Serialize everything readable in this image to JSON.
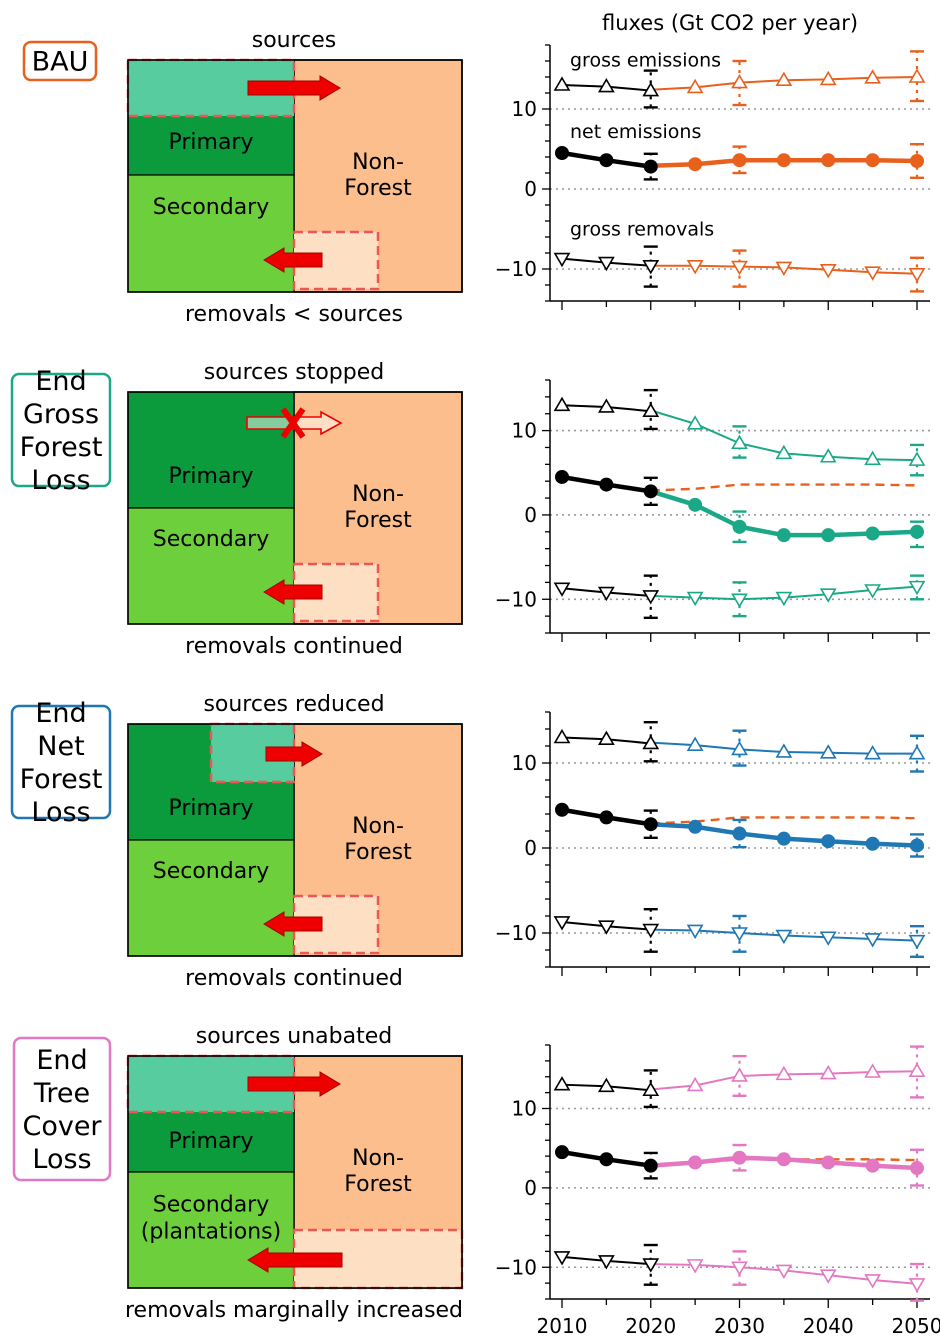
{
  "figure_title": "fluxes (Gt CO2 per year)",
  "colors": {
    "bau": "#e8601c",
    "end_gross": "#1aa887",
    "end_net": "#1f77b4",
    "end_tree": "#e377c2",
    "history": "#000000",
    "primary": "#0b9a3c",
    "secondary": "#6ecf3c",
    "nonforest": "#fcbe8c",
    "source_patch": "#57cc9e",
    "removal_patch": "#fde0c4",
    "arrow": "#ee0000",
    "dashed_box": "#ee5555"
  },
  "panels": [
    {
      "label_lines": [
        "BAU"
      ],
      "color": "#e8601c",
      "top_text": "sources",
      "bottom_text": "removals < sources",
      "primary_label": [
        "Primary"
      ],
      "secondary_label": [
        "Secondary"
      ],
      "nonforest_label": [
        "Non-",
        "Forest"
      ]
    },
    {
      "label_lines": [
        "End",
        "Gross",
        "Forest",
        "Loss"
      ],
      "color": "#1aa887",
      "top_text": "sources stopped",
      "bottom_text": "removals continued",
      "primary_label": [
        "Primary"
      ],
      "secondary_label": [
        "Secondary"
      ],
      "nonforest_label": [
        "Non-",
        "Forest"
      ]
    },
    {
      "label_lines": [
        "End",
        "Net",
        "Forest",
        "Loss"
      ],
      "color": "#1f77b4",
      "top_text": "sources reduced",
      "bottom_text": "removals continued",
      "primary_label": [
        "Primary"
      ],
      "secondary_label": [
        "Secondary"
      ],
      "nonforest_label": [
        "Non-",
        "Forest"
      ]
    },
    {
      "label_lines": [
        "End",
        "Tree",
        "Cover",
        "Loss"
      ],
      "color": "#e377c2",
      "top_text": "sources unabated",
      "bottom_text": "removals marginally increased",
      "primary_label": [
        "Primary"
      ],
      "secondary_label": [
        "Secondary",
        "(plantations)"
      ],
      "nonforest_label": [
        "Non-",
        "Forest"
      ]
    }
  ],
  "chart_data": [
    {
      "type": "line",
      "title": "fluxes (Gt CO2 per year)",
      "xlabel": "",
      "ylabel": "",
      "xlim": [
        2010,
        2050
      ],
      "ylim": [
        -14,
        18
      ],
      "yticks": [
        -10,
        0,
        10
      ],
      "xticks": [
        2010,
        2020,
        2030,
        2040,
        2050
      ],
      "annotations": [
        "gross emissions",
        "net emissions",
        "gross removals"
      ],
      "history": {
        "x": [
          2010,
          2015,
          2020
        ],
        "gross_emissions": [
          13.0,
          12.8,
          12.3
        ],
        "net_emissions": [
          4.5,
          3.6,
          2.8
        ],
        "gross_removals": [
          -8.7,
          -9.2,
          -9.6
        ]
      },
      "history_error": {
        "gross_emissions": [
          10.2,
          14.8
        ],
        "net_emissions": [
          1.2,
          4.4
        ],
        "gross_removals": [
          -12.2,
          -7.2
        ]
      },
      "scenario": {
        "name": "BAU",
        "x": [
          2020,
          2025,
          2030,
          2035,
          2040,
          2045,
          2050
        ],
        "gross_emissions": [
          12.4,
          12.7,
          13.3,
          13.6,
          13.7,
          13.9,
          14.0
        ],
        "net_emissions": [
          2.9,
          3.1,
          3.6,
          3.6,
          3.6,
          3.6,
          3.5
        ],
        "gross_removals": [
          -9.6,
          -9.6,
          -9.7,
          -9.8,
          -10.1,
          -10.4,
          -10.6
        ]
      },
      "scenario_error": {
        "2030": {
          "gross_emissions": [
            10.5,
            16.0
          ],
          "net_emissions": [
            2.0,
            5.3
          ],
          "gross_removals": [
            -12.2,
            -7.7
          ]
        },
        "2050": {
          "gross_emissions": [
            11.0,
            17.2
          ],
          "net_emissions": [
            1.4,
            5.6
          ],
          "gross_removals": [
            -12.8,
            -8.6
          ]
        }
      },
      "bau_reference": null
    },
    {
      "type": "line",
      "xlim": [
        2010,
        2050
      ],
      "ylim": [
        -14,
        16
      ],
      "yticks": [
        -10,
        0,
        10
      ],
      "xticks": [
        2010,
        2020,
        2030,
        2040,
        2050
      ],
      "history": {
        "x": [
          2010,
          2015,
          2020
        ],
        "gross_emissions": [
          13.0,
          12.8,
          12.3
        ],
        "net_emissions": [
          4.5,
          3.6,
          2.8
        ],
        "gross_removals": [
          -8.7,
          -9.2,
          -9.6
        ]
      },
      "history_error": {
        "gross_emissions": [
          10.2,
          14.8
        ],
        "net_emissions": [
          1.2,
          4.4
        ],
        "gross_removals": [
          -12.2,
          -7.2
        ]
      },
      "scenario": {
        "name": "End Gross Forest Loss",
        "x": [
          2020,
          2025,
          2030,
          2035,
          2040,
          2045,
          2050
        ],
        "gross_emissions": [
          12.4,
          10.8,
          8.5,
          7.3,
          6.9,
          6.6,
          6.5
        ],
        "net_emissions": [
          2.8,
          1.2,
          -1.4,
          -2.4,
          -2.4,
          -2.2,
          -2.0
        ],
        "gross_removals": [
          -9.6,
          -9.8,
          -10.0,
          -9.8,
          -9.4,
          -8.9,
          -8.5
        ]
      },
      "scenario_error": {
        "2030": {
          "gross_emissions": [
            6.8,
            10.5
          ],
          "net_emissions": [
            -3.2,
            0.4
          ],
          "gross_removals": [
            -12.0,
            -8.0
          ]
        },
        "2050": {
          "gross_emissions": [
            4.7,
            8.3
          ],
          "net_emissions": [
            -3.8,
            -0.8
          ],
          "gross_removals": [
            -10.0,
            -7.2
          ]
        }
      },
      "bau_reference": {
        "x": [
          2020,
          2025,
          2030,
          2035,
          2040,
          2045,
          2050
        ],
        "net_emissions": [
          2.9,
          3.1,
          3.6,
          3.6,
          3.6,
          3.6,
          3.5
        ]
      }
    },
    {
      "type": "line",
      "xlim": [
        2010,
        2050
      ],
      "ylim": [
        -14,
        16
      ],
      "yticks": [
        -10,
        0,
        10
      ],
      "xticks": [
        2010,
        2020,
        2030,
        2040,
        2050
      ],
      "history": {
        "x": [
          2010,
          2015,
          2020
        ],
        "gross_emissions": [
          13.0,
          12.8,
          12.3
        ],
        "net_emissions": [
          4.5,
          3.6,
          2.8
        ],
        "gross_removals": [
          -8.7,
          -9.2,
          -9.6
        ]
      },
      "history_error": {
        "gross_emissions": [
          10.2,
          14.8
        ],
        "net_emissions": [
          1.2,
          4.4
        ],
        "gross_removals": [
          -12.2,
          -7.2
        ]
      },
      "scenario": {
        "name": "End Net Forest Loss",
        "x": [
          2020,
          2025,
          2030,
          2035,
          2040,
          2045,
          2050
        ],
        "gross_emissions": [
          12.4,
          12.1,
          11.6,
          11.3,
          11.2,
          11.1,
          11.1
        ],
        "net_emissions": [
          2.8,
          2.5,
          1.7,
          1.1,
          0.8,
          0.5,
          0.3
        ],
        "gross_removals": [
          -9.6,
          -9.7,
          -10.0,
          -10.3,
          -10.5,
          -10.7,
          -10.9
        ]
      },
      "scenario_error": {
        "2030": {
          "gross_emissions": [
            9.7,
            13.8
          ],
          "net_emissions": [
            0.1,
            3.3
          ],
          "gross_removals": [
            -12.2,
            -8.0
          ]
        },
        "2050": {
          "gross_emissions": [
            9.0,
            13.2
          ],
          "net_emissions": [
            -1.0,
            1.6
          ],
          "gross_removals": [
            -12.8,
            -9.2
          ]
        }
      },
      "bau_reference": {
        "x": [
          2020,
          2025,
          2030,
          2035,
          2040,
          2045,
          2050
        ],
        "net_emissions": [
          2.9,
          3.1,
          3.6,
          3.6,
          3.6,
          3.6,
          3.5
        ]
      }
    },
    {
      "type": "line",
      "xlim": [
        2010,
        2050
      ],
      "ylim": [
        -14,
        18
      ],
      "yticks": [
        -10,
        0,
        10
      ],
      "xticks": [
        2010,
        2020,
        2030,
        2040,
        2050
      ],
      "xticklabels": [
        "2010",
        "2020",
        "2030",
        "2040",
        "2050"
      ],
      "history": {
        "x": [
          2010,
          2015,
          2020
        ],
        "gross_emissions": [
          13.0,
          12.8,
          12.3
        ],
        "net_emissions": [
          4.5,
          3.6,
          2.8
        ],
        "gross_removals": [
          -8.7,
          -9.2,
          -9.6
        ]
      },
      "history_error": {
        "gross_emissions": [
          10.2,
          14.8
        ],
        "net_emissions": [
          1.2,
          4.4
        ],
        "gross_removals": [
          -12.2,
          -7.2
        ]
      },
      "scenario": {
        "name": "End Tree Cover Loss",
        "x": [
          2020,
          2025,
          2030,
          2035,
          2040,
          2045,
          2050
        ],
        "gross_emissions": [
          12.4,
          12.9,
          14.1,
          14.3,
          14.4,
          14.6,
          14.7
        ],
        "net_emissions": [
          2.8,
          3.2,
          3.8,
          3.6,
          3.2,
          2.8,
          2.5
        ],
        "gross_removals": [
          -9.6,
          -9.7,
          -10.0,
          -10.4,
          -11.0,
          -11.6,
          -12.1
        ]
      },
      "scenario_error": {
        "2030": {
          "gross_emissions": [
            11.6,
            16.6
          ],
          "net_emissions": [
            2.2,
            5.4
          ],
          "gross_removals": [
            -12.2,
            -8.0
          ]
        },
        "2050": {
          "gross_emissions": [
            11.4,
            17.8
          ],
          "net_emissions": [
            0.3,
            4.8
          ],
          "gross_removals": [
            -14.2,
            -9.6
          ]
        }
      },
      "bau_reference": {
        "x": [
          2020,
          2025,
          2030,
          2035,
          2040,
          2045,
          2050
        ],
        "net_emissions": [
          2.9,
          3.1,
          3.6,
          3.6,
          3.6,
          3.6,
          3.5
        ]
      }
    }
  ]
}
